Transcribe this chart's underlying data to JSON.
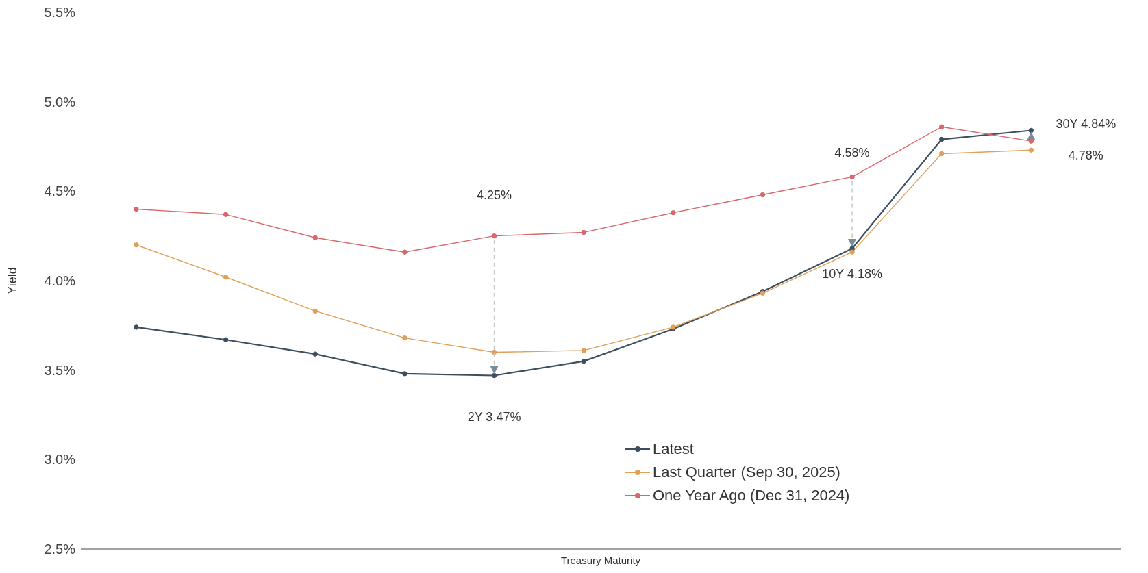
{
  "chart_data": {
    "type": "line",
    "xlabel": "Treasury Maturity",
    "ylabel": "Yield",
    "categories": [
      null,
      null,
      null,
      null,
      null,
      null,
      null,
      null,
      null,
      null,
      null
    ],
    "tick_labels": "y",
    "ylim": [
      2.5,
      5.5
    ],
    "yticks": [
      {
        "value": 2.5,
        "label": "2.5%"
      },
      {
        "value": 3.0,
        "label": "3.0%"
      },
      {
        "value": 3.5,
        "label": "3.5%"
      },
      {
        "value": 4.0,
        "label": "4.0%"
      },
      {
        "value": 4.5,
        "label": "4.5%"
      },
      {
        "value": 5.0,
        "label": "5.0%"
      },
      {
        "value": 5.5,
        "label": "5.5%"
      }
    ],
    "series": [
      {
        "name": "Latest",
        "color": "#3d4f5f",
        "values": [
          3.74,
          3.67,
          3.59,
          3.48,
          3.47,
          3.55,
          3.73,
          3.94,
          4.18,
          4.79,
          4.84
        ]
      },
      {
        "name": "Last Quarter (Sep 30, 2025)",
        "color": "#e0a05a",
        "values": [
          4.2,
          4.02,
          3.83,
          3.68,
          3.6,
          3.61,
          3.74,
          3.93,
          4.16,
          4.71,
          4.73
        ]
      },
      {
        "name": "One Year Ago (Dec 31, 2024)",
        "color": "#d9666b",
        "values": [
          4.4,
          4.37,
          4.24,
          4.16,
          4.25,
          4.27,
          4.38,
          4.48,
          4.58,
          4.86,
          4.78
        ]
      }
    ],
    "annotations": [
      "2Y 3.47%",
      "4.25%",
      "10Y 4.18%",
      "4.58%",
      "30Y 4.84%",
      "4.78%"
    ],
    "grid": false,
    "legend": "bottom right",
    "marker": "circle",
    "line_style": "solid"
  }
}
